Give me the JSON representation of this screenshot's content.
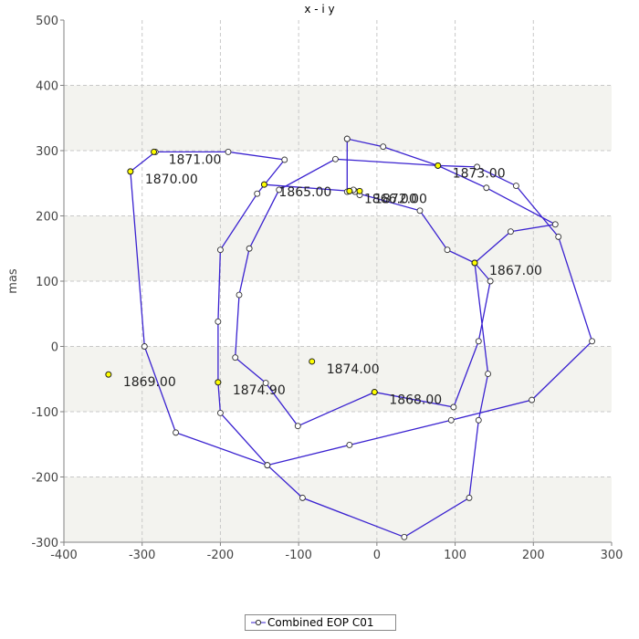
{
  "chart_data": {
    "type": "line",
    "title": "x - i y",
    "xlabel": "",
    "ylabel": "mas",
    "xlim": [
      -400,
      300
    ],
    "ylim": [
      -300,
      500
    ],
    "xticks": [
      -400,
      -300,
      -200,
      -100,
      0,
      100,
      200,
      300
    ],
    "yticks": [
      -300,
      -200,
      -100,
      0,
      100,
      200,
      300,
      400,
      500
    ],
    "grid": true,
    "legend_position": "bottom-center",
    "colors": {
      "line": "#3a22d0",
      "marker_fill": "#ffffff",
      "year_marker_fill": "#ffff00",
      "band": "#f3f3ef"
    },
    "series": [
      {
        "name": "Combined EOP C01",
        "points": [
          [
            -144,
            248
          ],
          [
            -35,
            238
          ],
          [
            55,
            208
          ],
          [
            90,
            148
          ],
          [
            125,
            128
          ],
          [
            145,
            100
          ],
          [
            130,
            8
          ],
          [
            98,
            -93
          ],
          [
            -3,
            -70
          ],
          [
            -101,
            -122
          ],
          [
            -142,
            -56
          ],
          [
            -181,
            -17
          ],
          [
            -176,
            79
          ],
          [
            -163,
            150
          ],
          [
            -125,
            240
          ],
          [
            -53,
            287
          ],
          [
            78,
            277
          ],
          [
            140,
            243
          ],
          [
            228,
            187
          ],
          [
            171,
            176
          ],
          [
            125,
            128
          ],
          [
            142,
            -42
          ],
          [
            130,
            -113
          ],
          [
            118,
            -232
          ],
          [
            35,
            -292
          ],
          [
            -95,
            -232
          ],
          [
            -140,
            -182
          ],
          [
            -200,
            -102
          ],
          [
            -203,
            -55
          ],
          [
            -203,
            38
          ],
          [
            -200,
            148
          ],
          [
            -153,
            234
          ],
          [
            -118,
            286
          ],
          [
            -190,
            298
          ],
          [
            -283,
            298
          ],
          [
            -315,
            268
          ],
          [
            -297,
            0
          ],
          [
            -257,
            -132
          ],
          [
            -140,
            -182
          ],
          [
            -35,
            -151
          ],
          [
            95,
            -113
          ],
          [
            198,
            -82
          ],
          [
            275,
            8
          ],
          [
            232,
            168
          ],
          [
            178,
            246
          ],
          [
            128,
            275
          ],
          [
            78,
            277
          ],
          [
            8,
            306
          ],
          [
            -38,
            318
          ],
          [
            -38,
            318
          ],
          [
            -38,
            237
          ],
          [
            -28,
            238
          ],
          [
            -22,
            232
          ],
          [
            -28,
            237
          ],
          [
            -30,
            240
          ],
          [
            -35,
            238
          ]
        ]
      }
    ],
    "year_labels": [
      {
        "label": "1865.00",
        "x": -144,
        "y": 248
      },
      {
        "label": "1866.00",
        "x": -35,
        "y": 238
      },
      {
        "label": "1867.00",
        "x": 125,
        "y": 128
      },
      {
        "label": "1868.00",
        "x": -3,
        "y": -70
      },
      {
        "label": "1869.00",
        "x": -343,
        "y": -43
      },
      {
        "label": "1870.00",
        "x": -315,
        "y": 268
      },
      {
        "label": "1871.00",
        "x": -285,
        "y": 298
      },
      {
        "label": "1872.00",
        "x": -22,
        "y": 238
      },
      {
        "label": "1873.00",
        "x": 78,
        "y": 277
      },
      {
        "label": "1874.00",
        "x": -83,
        "y": -23
      },
      {
        "label": "1874.90",
        "x": -203,
        "y": -55
      }
    ]
  }
}
